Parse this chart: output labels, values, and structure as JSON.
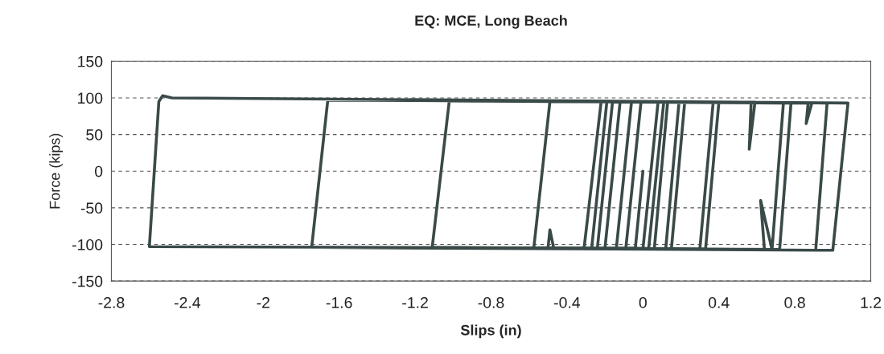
{
  "chart_data": {
    "type": "line",
    "title": "EQ: MCE, Long Beach",
    "xlabel": "Slips (in)",
    "ylabel": "Force (kips)",
    "series": [
      {
        "color": "#3a4a48",
        "x": [
          0.0,
          -0.04,
          -2.6,
          -2.55,
          -2.53,
          -2.48,
          1.08,
          1.0,
          -1.745,
          -1.66,
          0.97,
          0.91,
          -1.11,
          -1.02,
          0.78,
          0.72,
          -0.575,
          -0.49,
          0.4,
          0.33,
          -0.31,
          -0.22,
          0.74,
          0.68,
          0.62,
          0.64,
          -0.27,
          -0.19,
          0.37,
          0.3,
          -0.24,
          -0.16,
          0.57,
          0.56,
          0.59,
          0.13,
          0.06,
          -0.2,
          -0.12,
          0.87,
          0.86,
          0.89,
          0.11,
          0.03,
          -0.14,
          -0.06,
          0.22,
          0.15,
          -0.09,
          -0.01,
          0.19,
          0.12,
          -0.5,
          -0.49,
          -0.47,
          0.0,
          0.08
        ],
        "values": [
          0,
          -105,
          -103,
          95,
          103,
          100,
          93,
          -108,
          -104,
          97,
          93,
          -108,
          -104,
          96,
          93,
          -107,
          -105,
          95,
          94,
          -106,
          -105,
          95,
          93,
          -107,
          -40,
          -107,
          -105,
          95,
          94,
          -106,
          -105,
          95,
          94,
          30,
          94,
          94,
          -106,
          -105,
          95,
          93,
          65,
          93,
          95,
          -106,
          -105,
          95,
          94,
          -106,
          -105,
          95,
          94,
          -106,
          -105,
          -80,
          -105,
          -106,
          95
        ]
      }
    ],
    "xlim": [
      -2.8,
      1.2
    ],
    "xticks": [
      -2.8,
      -2.4,
      -2,
      -1.6,
      -1.2,
      -0.8,
      -0.4,
      0,
      0.4,
      0.8,
      1.2
    ],
    "ylim": [
      -150,
      150
    ],
    "yticks": [
      -150,
      -100,
      -50,
      0,
      50,
      100,
      150
    ],
    "grid": "y",
    "marker": "none",
    "line_style": "solid"
  }
}
